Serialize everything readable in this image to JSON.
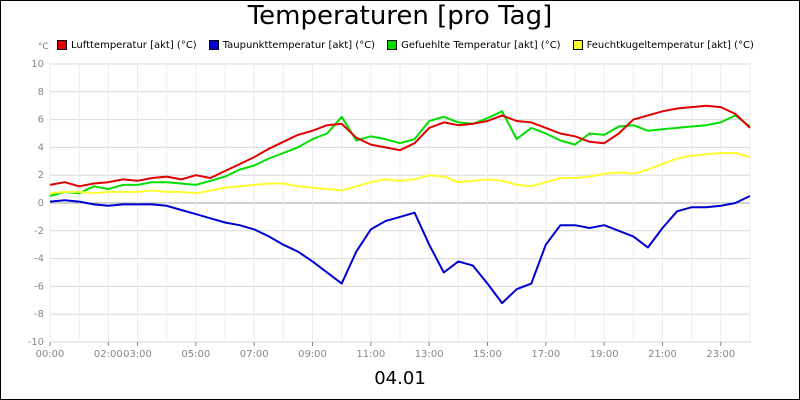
{
  "chart_data": {
    "type": "line",
    "title": "Temperaturen [pro Tag]",
    "xlabel": "04.01",
    "ylabel": "°C",
    "xlim": [
      0,
      24
    ],
    "ylim": [
      -10,
      10
    ],
    "yticks": [
      10,
      8,
      6,
      4,
      2,
      0,
      -2,
      -4,
      -6,
      -8,
      -10
    ],
    "xticks": [
      {
        "t": 0,
        "label": "00:00"
      },
      {
        "t": 2,
        "label": "02:00"
      },
      {
        "t": 3,
        "label": "03:00"
      },
      {
        "t": 5,
        "label": "05:00"
      },
      {
        "t": 7,
        "label": "07:00"
      },
      {
        "t": 9,
        "label": "09:00"
      },
      {
        "t": 11,
        "label": "11:00"
      },
      {
        "t": 13,
        "label": "13:00"
      },
      {
        "t": 15,
        "label": "15:00"
      },
      {
        "t": 17,
        "label": "17:00"
      },
      {
        "t": 19,
        "label": "19:00"
      },
      {
        "t": 21,
        "label": "21:00"
      },
      {
        "t": 23,
        "label": "23:00"
      }
    ],
    "series": [
      {
        "name": "Lufttemperatur [akt] (°C)",
        "color": "#e00000",
        "points": [
          [
            0,
            1.3
          ],
          [
            0.5,
            1.5
          ],
          [
            1,
            1.2
          ],
          [
            1.5,
            1.4
          ],
          [
            2,
            1.5
          ],
          [
            2.5,
            1.7
          ],
          [
            3,
            1.6
          ],
          [
            3.5,
            1.8
          ],
          [
            4,
            1.9
          ],
          [
            4.5,
            1.7
          ],
          [
            5,
            2.0
          ],
          [
            5.5,
            1.8
          ],
          [
            6,
            2.3
          ],
          [
            6.5,
            2.8
          ],
          [
            7,
            3.3
          ],
          [
            7.5,
            3.9
          ],
          [
            8,
            4.4
          ],
          [
            8.5,
            4.9
          ],
          [
            9,
            5.2
          ],
          [
            9.5,
            5.6
          ],
          [
            10,
            5.7
          ],
          [
            10.5,
            4.7
          ],
          [
            11,
            4.2
          ],
          [
            11.5,
            4.0
          ],
          [
            12,
            3.8
          ],
          [
            12.5,
            4.3
          ],
          [
            13,
            5.4
          ],
          [
            13.5,
            5.8
          ],
          [
            14,
            5.6
          ],
          [
            14.5,
            5.7
          ],
          [
            15,
            5.9
          ],
          [
            15.5,
            6.3
          ],
          [
            16,
            5.9
          ],
          [
            16.5,
            5.8
          ],
          [
            17,
            5.4
          ],
          [
            17.5,
            5.0
          ],
          [
            18,
            4.8
          ],
          [
            18.5,
            4.4
          ],
          [
            19,
            4.3
          ],
          [
            19.5,
            5.0
          ],
          [
            20,
            6.0
          ],
          [
            20.5,
            6.3
          ],
          [
            21,
            6.6
          ],
          [
            21.5,
            6.8
          ],
          [
            22,
            6.9
          ],
          [
            22.5,
            7.0
          ],
          [
            23,
            6.9
          ],
          [
            23.5,
            6.4
          ],
          [
            24,
            5.4
          ]
        ]
      },
      {
        "name": "Taupunkttemperatur [akt] (°C)",
        "color": "#0000d0",
        "points": [
          [
            0,
            0.1
          ],
          [
            0.5,
            0.2
          ],
          [
            1,
            0.1
          ],
          [
            1.5,
            -0.1
          ],
          [
            2,
            -0.2
          ],
          [
            2.5,
            -0.1
          ],
          [
            3,
            -0.1
          ],
          [
            3.5,
            -0.1
          ],
          [
            4,
            -0.2
          ],
          [
            4.5,
            -0.5
          ],
          [
            5,
            -0.8
          ],
          [
            5.5,
            -1.1
          ],
          [
            6,
            -1.4
          ],
          [
            6.5,
            -1.6
          ],
          [
            7,
            -1.9
          ],
          [
            7.5,
            -2.4
          ],
          [
            8,
            -3.0
          ],
          [
            8.5,
            -3.5
          ],
          [
            9,
            -4.2
          ],
          [
            9.5,
            -5.0
          ],
          [
            10,
            -5.8
          ],
          [
            10.5,
            -3.5
          ],
          [
            11,
            -1.9
          ],
          [
            11.5,
            -1.3
          ],
          [
            12,
            -1.0
          ],
          [
            12.5,
            -0.7
          ],
          [
            13,
            -3.0
          ],
          [
            13.5,
            -5.0
          ],
          [
            14,
            -4.2
          ],
          [
            14.5,
            -4.5
          ],
          [
            15,
            -5.8
          ],
          [
            15.5,
            -7.2
          ],
          [
            16,
            -6.2
          ],
          [
            16.5,
            -5.8
          ],
          [
            17,
            -3.0
          ],
          [
            17.5,
            -1.6
          ],
          [
            18,
            -1.6
          ],
          [
            18.5,
            -1.8
          ],
          [
            19,
            -1.6
          ],
          [
            19.5,
            -2.0
          ],
          [
            20,
            -2.4
          ],
          [
            20.5,
            -3.2
          ],
          [
            21,
            -1.8
          ],
          [
            21.5,
            -0.6
          ],
          [
            22,
            -0.3
          ],
          [
            22.5,
            -0.3
          ],
          [
            23,
            -0.2
          ],
          [
            23.5,
            0.0
          ],
          [
            24,
            0.5
          ]
        ]
      },
      {
        "name": "Gefuehlte Temperatur [akt] (°C)",
        "color": "#00e000",
        "points": [
          [
            0,
            0.5
          ],
          [
            0.5,
            0.8
          ],
          [
            1,
            0.7
          ],
          [
            1.5,
            1.2
          ],
          [
            2,
            1.0
          ],
          [
            2.5,
            1.3
          ],
          [
            3,
            1.3
          ],
          [
            3.5,
            1.5
          ],
          [
            4,
            1.5
          ],
          [
            4.5,
            1.4
          ],
          [
            5,
            1.3
          ],
          [
            5.5,
            1.6
          ],
          [
            6,
            1.9
          ],
          [
            6.5,
            2.4
          ],
          [
            7,
            2.7
          ],
          [
            7.5,
            3.2
          ],
          [
            8,
            3.6
          ],
          [
            8.5,
            4.0
          ],
          [
            9,
            4.6
          ],
          [
            9.5,
            5.0
          ],
          [
            10,
            6.2
          ],
          [
            10.5,
            4.5
          ],
          [
            11,
            4.8
          ],
          [
            11.5,
            4.6
          ],
          [
            12,
            4.3
          ],
          [
            12.5,
            4.6
          ],
          [
            13,
            5.9
          ],
          [
            13.5,
            6.2
          ],
          [
            14,
            5.8
          ],
          [
            14.5,
            5.7
          ],
          [
            15,
            6.1
          ],
          [
            15.5,
            6.6
          ],
          [
            16,
            4.6
          ],
          [
            16.5,
            5.4
          ],
          [
            17,
            5.0
          ],
          [
            17.5,
            4.5
          ],
          [
            18,
            4.2
          ],
          [
            18.5,
            5.0
          ],
          [
            19,
            4.9
          ],
          [
            19.5,
            5.5
          ],
          [
            20,
            5.6
          ],
          [
            20.5,
            5.2
          ],
          [
            21,
            5.3
          ],
          [
            21.5,
            5.4
          ],
          [
            22,
            5.5
          ],
          [
            22.5,
            5.6
          ],
          [
            23,
            5.8
          ],
          [
            23.5,
            6.3
          ],
          [
            24,
            5.5
          ]
        ]
      },
      {
        "name": "Feuchtkugeltemperatur [akt] (°C)",
        "color": "#ffff30",
        "points": [
          [
            0,
            0.7
          ],
          [
            0.5,
            0.8
          ],
          [
            1,
            0.8
          ],
          [
            1.5,
            0.7
          ],
          [
            2,
            0.8
          ],
          [
            2.5,
            0.8
          ],
          [
            3,
            0.8
          ],
          [
            3.5,
            0.9
          ],
          [
            4,
            0.8
          ],
          [
            4.5,
            0.8
          ],
          [
            5,
            0.7
          ],
          [
            5.5,
            0.9
          ],
          [
            6,
            1.1
          ],
          [
            6.5,
            1.2
          ],
          [
            7,
            1.3
          ],
          [
            7.5,
            1.4
          ],
          [
            8,
            1.4
          ],
          [
            8.5,
            1.2
          ],
          [
            9,
            1.1
          ],
          [
            9.5,
            1.0
          ],
          [
            10,
            0.9
          ],
          [
            10.5,
            1.2
          ],
          [
            11,
            1.5
          ],
          [
            11.5,
            1.7
          ],
          [
            12,
            1.6
          ],
          [
            12.5,
            1.7
          ],
          [
            13,
            2.0
          ],
          [
            13.5,
            1.9
          ],
          [
            14,
            1.5
          ],
          [
            14.5,
            1.6
          ],
          [
            15,
            1.7
          ],
          [
            15.5,
            1.6
          ],
          [
            16,
            1.3
          ],
          [
            16.5,
            1.2
          ],
          [
            17,
            1.5
          ],
          [
            17.5,
            1.8
          ],
          [
            18,
            1.8
          ],
          [
            18.5,
            1.9
          ],
          [
            19,
            2.1
          ],
          [
            19.5,
            2.2
          ],
          [
            20,
            2.1
          ],
          [
            20.5,
            2.4
          ],
          [
            21,
            2.8
          ],
          [
            21.5,
            3.2
          ],
          [
            22,
            3.4
          ],
          [
            22.5,
            3.5
          ],
          [
            23,
            3.6
          ],
          [
            23.5,
            3.6
          ],
          [
            24,
            3.3
          ]
        ]
      }
    ]
  }
}
